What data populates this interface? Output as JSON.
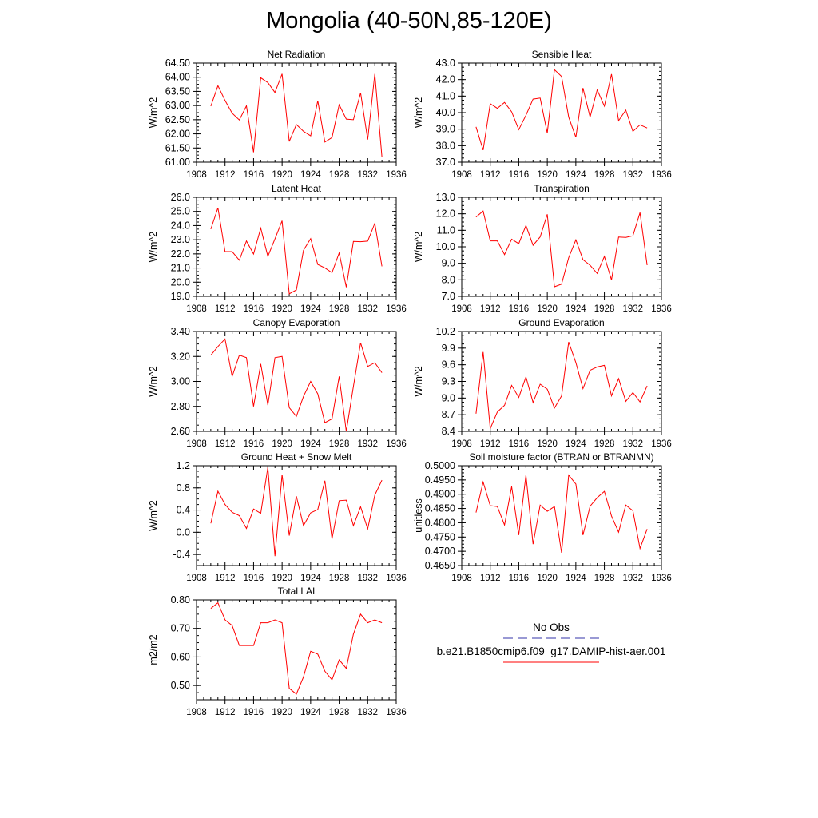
{
  "page": {
    "title": "Mongolia (40-50N,85-120E)"
  },
  "legend": {
    "entries": [
      {
        "label": "No Obs",
        "color": "#3333aa",
        "dash": true
      },
      {
        "label": "b.e21.B1850cmip6.f09_g17.DAMIP-hist-aer.001",
        "color": "#ff0000",
        "dash": false
      }
    ]
  },
  "chart_data": [
    {
      "type": "line",
      "title": "Net Radiation",
      "ylabel": "W/m^2",
      "xlim": [
        1908,
        1936
      ],
      "ylim": [
        61.0,
        64.5
      ],
      "xticks": [
        "1908",
        "1912",
        "1916",
        "1920",
        "1924",
        "1928",
        "1932",
        "1936"
      ],
      "yticks": [
        "61.00",
        "61.50",
        "62.00",
        "62.50",
        "63.00",
        "63.50",
        "64.00",
        "64.50"
      ],
      "x": [
        1910,
        1911,
        1912,
        1913,
        1914,
        1915,
        1916,
        1917,
        1918,
        1919,
        1920,
        1921,
        1922,
        1923,
        1924,
        1925,
        1926,
        1927,
        1928,
        1929,
        1930,
        1931,
        1932,
        1933,
        1934
      ],
      "values": [
        62.98,
        63.7,
        63.18,
        62.73,
        62.49,
        62.99,
        61.35,
        63.98,
        63.81,
        63.46,
        64.12,
        61.73,
        62.33,
        62.09,
        61.93,
        63.17,
        61.71,
        61.87,
        63.03,
        62.52,
        62.5,
        63.45,
        61.8,
        64.12,
        61.19
      ],
      "series": [
        {
          "name": "b.e21.B1850cmip6.f09_g17.DAMIP-hist-aer.001",
          "color": "#ff0000"
        }
      ]
    },
    {
      "type": "line",
      "title": "Sensible Heat",
      "ylabel": "W/m^2",
      "xlim": [
        1908,
        1936
      ],
      "ylim": [
        37.0,
        43.0
      ],
      "xticks": [
        "1908",
        "1912",
        "1916",
        "1920",
        "1924",
        "1928",
        "1932",
        "1936"
      ],
      "yticks": [
        "37.0",
        "38.0",
        "39.0",
        "40.0",
        "41.0",
        "42.0",
        "43.0"
      ],
      "x": [
        1910,
        1911,
        1912,
        1913,
        1914,
        1915,
        1916,
        1917,
        1918,
        1919,
        1920,
        1921,
        1922,
        1923,
        1924,
        1925,
        1926,
        1927,
        1928,
        1929,
        1930,
        1931,
        1932,
        1933,
        1934
      ],
      "values": [
        39.14,
        37.73,
        40.54,
        40.26,
        40.62,
        40.05,
        38.97,
        39.84,
        40.82,
        40.88,
        38.76,
        42.6,
        42.19,
        39.73,
        38.51,
        41.49,
        39.73,
        41.38,
        40.39,
        42.33,
        39.51,
        40.15,
        38.87,
        39.26,
        39.07
      ],
      "series": [
        {
          "name": "b.e21.B1850cmip6.f09_g17.DAMIP-hist-aer.001",
          "color": "#ff0000"
        }
      ]
    },
    {
      "type": "line",
      "title": "Latent Heat",
      "ylabel": "W/m^2",
      "xlim": [
        1908,
        1936
      ],
      "ylim": [
        19.0,
        26.0
      ],
      "xticks": [
        "1908",
        "1912",
        "1916",
        "1920",
        "1924",
        "1928",
        "1932",
        "1936"
      ],
      "yticks": [
        "19.0",
        "20.0",
        "21.0",
        "22.0",
        "23.0",
        "24.0",
        "25.0",
        "26.0"
      ],
      "x": [
        1910,
        1911,
        1912,
        1913,
        1914,
        1915,
        1916,
        1917,
        1918,
        1919,
        1920,
        1921,
        1922,
        1923,
        1924,
        1925,
        1926,
        1927,
        1928,
        1929,
        1930,
        1931,
        1932,
        1933,
        1934
      ],
      "values": [
        23.75,
        25.26,
        22.16,
        22.16,
        21.55,
        22.91,
        21.99,
        23.82,
        21.82,
        23.06,
        24.34,
        19.18,
        19.45,
        22.25,
        23.08,
        21.25,
        21.01,
        20.67,
        22.07,
        19.65,
        22.88,
        22.86,
        22.9,
        24.16,
        21.12
      ],
      "series": [
        {
          "name": "b.e21.B1850cmip6.f09_g17.DAMIP-hist-aer.001",
          "color": "#ff0000"
        }
      ]
    },
    {
      "type": "line",
      "title": "Transpiration",
      "ylabel": "W/m^2",
      "xlim": [
        1908,
        1936
      ],
      "ylim": [
        7.0,
        13.0
      ],
      "xticks": [
        "1908",
        "1912",
        "1916",
        "1920",
        "1924",
        "1928",
        "1932",
        "1936"
      ],
      "yticks": [
        "7.0",
        "8.0",
        "9.0",
        "10.0",
        "11.0",
        "12.0",
        "13.0"
      ],
      "x": [
        1910,
        1911,
        1912,
        1913,
        1914,
        1915,
        1916,
        1917,
        1918,
        1919,
        1920,
        1921,
        1922,
        1923,
        1924,
        1925,
        1926,
        1927,
        1928,
        1929,
        1930,
        1931,
        1932,
        1933,
        1934
      ],
      "values": [
        11.8,
        12.17,
        10.36,
        10.36,
        9.53,
        10.46,
        10.19,
        11.29,
        10.09,
        10.6,
        11.97,
        7.58,
        7.74,
        9.34,
        10.42,
        9.22,
        8.88,
        8.39,
        9.42,
        7.99,
        10.59,
        10.57,
        10.67,
        12.07,
        8.89
      ],
      "series": [
        {
          "name": "b.e21.B1850cmip6.f09_g17.DAMIP-hist-aer.001",
          "color": "#ff0000"
        }
      ]
    },
    {
      "type": "line",
      "title": "Canopy Evaporation",
      "ylabel": "W/m^2",
      "xlim": [
        1908,
        1936
      ],
      "ylim": [
        2.6,
        3.4
      ],
      "xticks": [
        "1908",
        "1912",
        "1916",
        "1920",
        "1924",
        "1928",
        "1932",
        "1936"
      ],
      "yticks": [
        "2.60",
        "2.80",
        "3.00",
        "3.20",
        "3.40"
      ],
      "x": [
        1910,
        1911,
        1912,
        1913,
        1914,
        1915,
        1916,
        1917,
        1918,
        1919,
        1920,
        1921,
        1922,
        1923,
        1924,
        1925,
        1926,
        1927,
        1928,
        1929,
        1930,
        1931,
        1932,
        1933,
        1934
      ],
      "values": [
        3.21,
        3.28,
        3.34,
        3.04,
        3.21,
        3.19,
        2.8,
        3.14,
        2.81,
        3.19,
        3.2,
        2.79,
        2.72,
        2.88,
        3.0,
        2.9,
        2.67,
        2.7,
        3.04,
        2.6,
        2.96,
        3.31,
        3.12,
        3.15,
        3.07
      ],
      "series": [
        {
          "name": "b.e21.B1850cmip6.f09_g17.DAMIP-hist-aer.001",
          "color": "#ff0000"
        }
      ]
    },
    {
      "type": "line",
      "title": "Ground Evaporation",
      "ylabel": "W/m^2",
      "xlim": [
        1908,
        1936
      ],
      "ylim": [
        8.4,
        10.2
      ],
      "xticks": [
        "1908",
        "1912",
        "1916",
        "1920",
        "1924",
        "1928",
        "1932",
        "1936"
      ],
      "yticks": [
        "8.4",
        "8.7",
        "9.0",
        "9.3",
        "9.6",
        "9.9",
        "10.2"
      ],
      "x": [
        1910,
        1911,
        1912,
        1913,
        1914,
        1915,
        1916,
        1917,
        1918,
        1919,
        1920,
        1921,
        1922,
        1923,
        1924,
        1925,
        1926,
        1927,
        1928,
        1929,
        1930,
        1931,
        1932,
        1933,
        1934
      ],
      "values": [
        8.72,
        9.83,
        8.45,
        8.75,
        8.87,
        9.23,
        9.01,
        9.38,
        8.92,
        9.25,
        9.16,
        8.82,
        9.04,
        10.01,
        9.64,
        9.17,
        9.5,
        9.56,
        9.59,
        9.04,
        9.35,
        8.94,
        9.1,
        8.93,
        9.22
      ],
      "series": [
        {
          "name": "b.e21.B1850cmip6.f09_g17.DAMIP-hist-aer.001",
          "color": "#ff0000"
        }
      ]
    },
    {
      "type": "line",
      "title": "Ground Heat + Snow Melt",
      "ylabel": "W/m^2",
      "xlim": [
        1908,
        1936
      ],
      "ylim": [
        -0.6,
        1.2
      ],
      "xticks": [
        "1908",
        "1912",
        "1916",
        "1920",
        "1924",
        "1928",
        "1932",
        "1936"
      ],
      "yticks": [
        "-0.4",
        "0.0",
        "0.4",
        "0.8",
        "1.2"
      ],
      "ytickvals": [
        -0.4,
        0.0,
        0.4,
        0.8,
        1.2
      ],
      "x": [
        1910,
        1911,
        1912,
        1913,
        1914,
        1915,
        1916,
        1917,
        1918,
        1919,
        1920,
        1921,
        1922,
        1923,
        1924,
        1925,
        1926,
        1927,
        1928,
        1929,
        1930,
        1931,
        1932,
        1933,
        1934
      ],
      "values": [
        0.16,
        0.74,
        0.5,
        0.36,
        0.3,
        0.07,
        0.42,
        0.34,
        1.17,
        -0.43,
        1.04,
        -0.06,
        0.65,
        0.12,
        0.35,
        0.41,
        0.93,
        -0.12,
        0.57,
        0.58,
        0.12,
        0.46,
        0.06,
        0.67,
        0.94
      ],
      "series": [
        {
          "name": "b.e21.B1850cmip6.f09_g17.DAMIP-hist-aer.001",
          "color": "#ff0000"
        }
      ]
    },
    {
      "type": "line",
      "title": "Soil moisture factor (BTRAN or BTRANMN)",
      "ylabel": "unitless",
      "xlim": [
        1908,
        1936
      ],
      "ylim": [
        0.465,
        0.5
      ],
      "xticks": [
        "1908",
        "1912",
        "1916",
        "1920",
        "1924",
        "1928",
        "1932",
        "1936"
      ],
      "yticks": [
        "0.4650",
        "0.4700",
        "0.4750",
        "0.4800",
        "0.4850",
        "0.4900",
        "0.4950",
        "0.5000"
      ],
      "x": [
        1910,
        1911,
        1912,
        1913,
        1914,
        1915,
        1916,
        1917,
        1918,
        1919,
        1920,
        1921,
        1922,
        1923,
        1924,
        1925,
        1926,
        1927,
        1928,
        1929,
        1930,
        1931,
        1932,
        1933,
        1934
      ],
      "values": [
        0.4836,
        0.4943,
        0.486,
        0.4857,
        0.4792,
        0.4927,
        0.4757,
        0.4967,
        0.4725,
        0.4862,
        0.484,
        0.4857,
        0.4695,
        0.4967,
        0.4936,
        0.4757,
        0.4858,
        0.4888,
        0.491,
        0.4824,
        0.4767,
        0.4862,
        0.4842,
        0.471,
        0.4778
      ],
      "series": [
        {
          "name": "b.e21.B1850cmip6.f09_g17.DAMIP-hist-aer.001",
          "color": "#ff0000"
        }
      ]
    },
    {
      "type": "line",
      "title": "Total LAI",
      "ylabel": "m2/m2",
      "xlim": [
        1908,
        1936
      ],
      "ylim": [
        0.45,
        0.8
      ],
      "xticks": [
        "1908",
        "1912",
        "1916",
        "1920",
        "1924",
        "1928",
        "1932",
        "1936"
      ],
      "yticks": [
        "0.50",
        "0.60",
        "0.70",
        "0.80"
      ],
      "ytickvals": [
        0.5,
        0.6,
        0.7,
        0.8
      ],
      "x": [
        1910,
        1911,
        1912,
        1913,
        1914,
        1915,
        1916,
        1917,
        1918,
        1919,
        1920,
        1921,
        1922,
        1923,
        1924,
        1925,
        1926,
        1927,
        1928,
        1929,
        1930,
        1931,
        1932,
        1933,
        1934
      ],
      "values": [
        0.77,
        0.79,
        0.73,
        0.71,
        0.64,
        0.64,
        0.64,
        0.72,
        0.72,
        0.73,
        0.72,
        0.49,
        0.47,
        0.53,
        0.62,
        0.61,
        0.55,
        0.52,
        0.59,
        0.56,
        0.68,
        0.75,
        0.72,
        0.73,
        0.72
      ],
      "series": [
        {
          "name": "b.e21.B1850cmip6.f09_g17.DAMIP-hist-aer.001",
          "color": "#ff0000"
        }
      ]
    }
  ]
}
